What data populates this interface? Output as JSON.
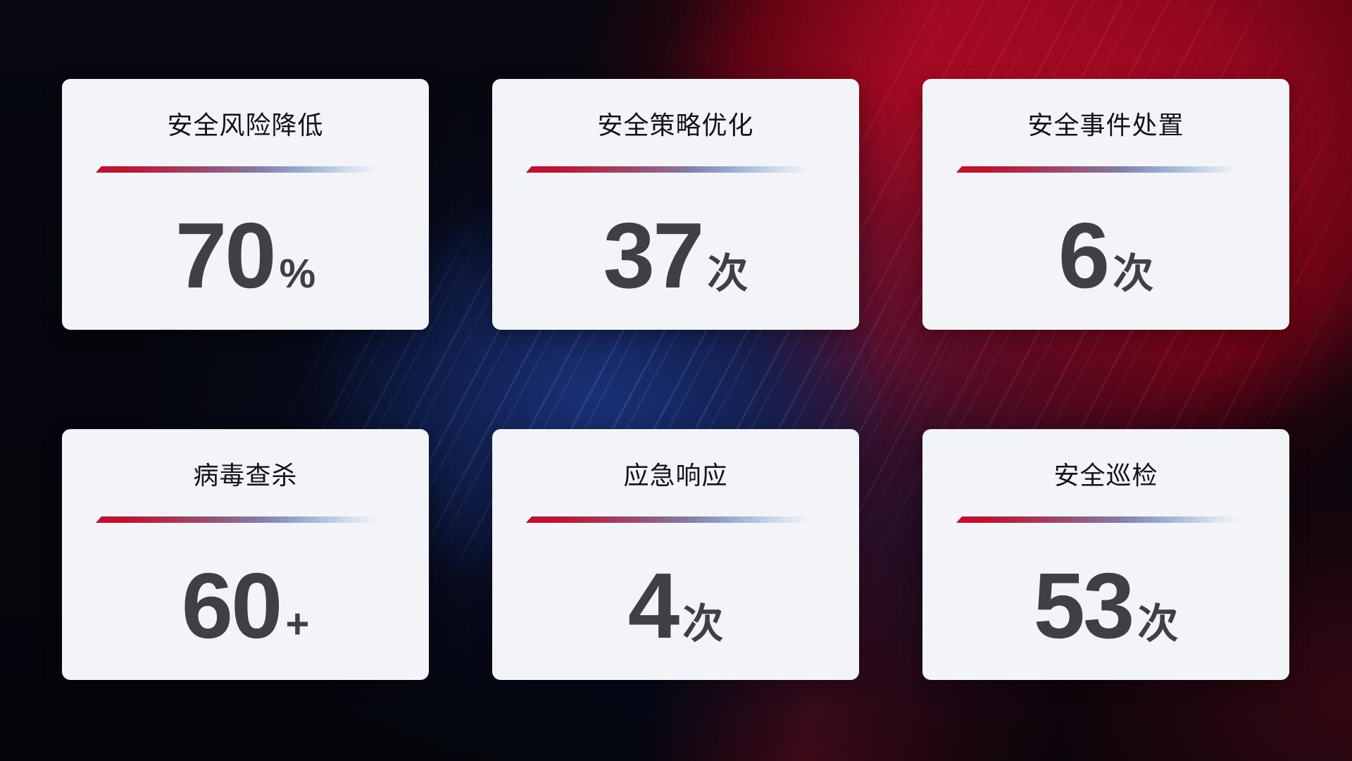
{
  "cards": [
    {
      "title": "安全风险降低",
      "value": "70",
      "unit": "%"
    },
    {
      "title": "安全策略优化",
      "value": "37",
      "unit": "次"
    },
    {
      "title": "安全事件处置",
      "value": "6",
      "unit": "次"
    },
    {
      "title": "病毒查杀",
      "value": "60",
      "unit": "+"
    },
    {
      "title": "应急响应",
      "value": "4",
      "unit": "次"
    },
    {
      "title": "安全巡检",
      "value": "53",
      "unit": "次"
    }
  ],
  "colors": {
    "card_background": "#f3f4f8",
    "title_text": "#121318",
    "value_text": "#3f4045",
    "divider_red": "#c50e2d",
    "divider_blue": "#93a3c9",
    "background_red": "#a80c23",
    "background_navy": "#1b347e",
    "background_base": "#05060d"
  }
}
